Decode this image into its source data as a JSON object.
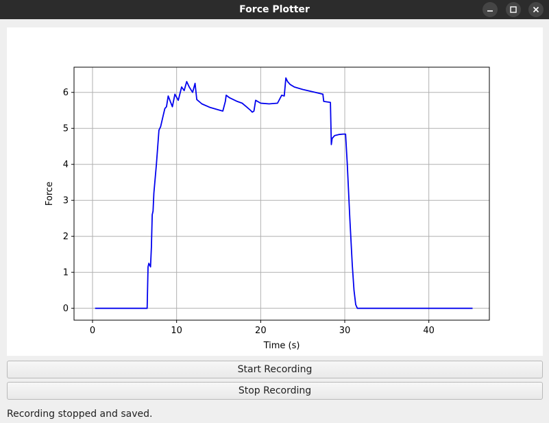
{
  "window": {
    "title": "Force Plotter"
  },
  "controls": {
    "start_label": "Start Recording",
    "stop_label": "Stop Recording"
  },
  "status_text": "Recording stopped and saved.",
  "colors": {
    "series": "#0000ee",
    "titlebar": "#2c2c2c",
    "grid": "#b0b0b0"
  },
  "icons": {
    "minimize": "minimize-icon",
    "maximize": "maximize-icon",
    "close": "close-icon"
  },
  "chart_data": {
    "type": "line",
    "title": "",
    "xlabel": "Time (s)",
    "ylabel": "Force",
    "xlim": [
      -2.2,
      47.2
    ],
    "ylim": [
      -0.33,
      6.7
    ],
    "xticks": [
      0,
      10,
      20,
      30,
      40
    ],
    "yticks": [
      0,
      1,
      2,
      3,
      4,
      5,
      6
    ],
    "grid": true,
    "series": [
      {
        "color": "#0000ee",
        "x": [
          0.3,
          6.5,
          6.6,
          6.7,
          6.9,
          7.0,
          7.1,
          7.2,
          7.3,
          7.6,
          7.9,
          8.1,
          8.4,
          8.6,
          8.8,
          9.0,
          9.5,
          9.8,
          10.2,
          10.6,
          10.9,
          11.2,
          11.5,
          11.9,
          12.2,
          12.4,
          13.0,
          14.0,
          15.2,
          15.5,
          15.8,
          15.9,
          16.3,
          17.2,
          17.8,
          18.3,
          18.8,
          19.0,
          19.2,
          19.4,
          20.0,
          21.0,
          22.0,
          22.5,
          22.8,
          23.0,
          23.2,
          23.5,
          24.0,
          25.0,
          26.5,
          27.4,
          27.5,
          28.3,
          28.4,
          28.5,
          28.8,
          29.3,
          29.8,
          30.1,
          30.3,
          30.6,
          30.9,
          31.1,
          31.3,
          31.5,
          32.0,
          40.0,
          45.2
        ],
        "y": [
          0.0,
          0.0,
          1.15,
          1.25,
          1.15,
          1.7,
          2.6,
          2.7,
          3.2,
          4.0,
          4.95,
          5.05,
          5.35,
          5.55,
          5.6,
          5.9,
          5.6,
          5.95,
          5.78,
          6.15,
          6.05,
          6.3,
          6.15,
          6.0,
          6.25,
          5.8,
          5.68,
          5.58,
          5.5,
          5.48,
          5.75,
          5.92,
          5.85,
          5.75,
          5.7,
          5.6,
          5.5,
          5.45,
          5.48,
          5.78,
          5.7,
          5.68,
          5.7,
          5.92,
          5.9,
          6.4,
          6.3,
          6.22,
          6.15,
          6.08,
          6.0,
          5.95,
          5.75,
          5.72,
          4.55,
          4.72,
          4.8,
          4.83,
          4.84,
          4.84,
          4.0,
          2.5,
          1.2,
          0.5,
          0.1,
          0.0,
          0.0,
          0.0,
          0.0
        ]
      }
    ]
  }
}
